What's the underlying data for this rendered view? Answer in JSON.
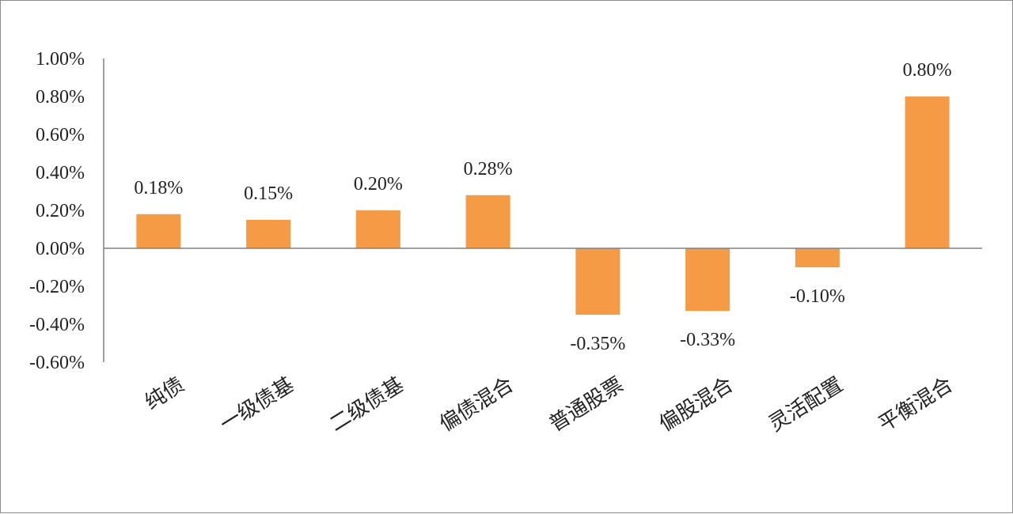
{
  "chart_data": {
    "type": "bar",
    "categories": [
      "纯债",
      "一级债基",
      "二级债基",
      "偏债混合",
      "普通股票",
      "偏股混合",
      "灵活配置",
      "平衡混合"
    ],
    "values": [
      0.18,
      0.15,
      0.2,
      0.28,
      -0.35,
      -0.33,
      -0.1,
      0.8
    ],
    "data_labels": [
      "0.18%",
      "0.15%",
      "0.20%",
      "0.28%",
      "-0.35%",
      "-0.33%",
      "-0.10%",
      "0.80%"
    ],
    "y_ticks": [
      "1.00%",
      "0.80%",
      "0.60%",
      "0.40%",
      "0.20%",
      "0.00%",
      "-0.20%",
      "-0.40%",
      "-0.60%"
    ],
    "ylim": [
      -0.6,
      1.0
    ],
    "y_unit": "%",
    "grid": false,
    "legend": "none",
    "bar_color": "#F59A45",
    "axis_color": "#808080"
  }
}
